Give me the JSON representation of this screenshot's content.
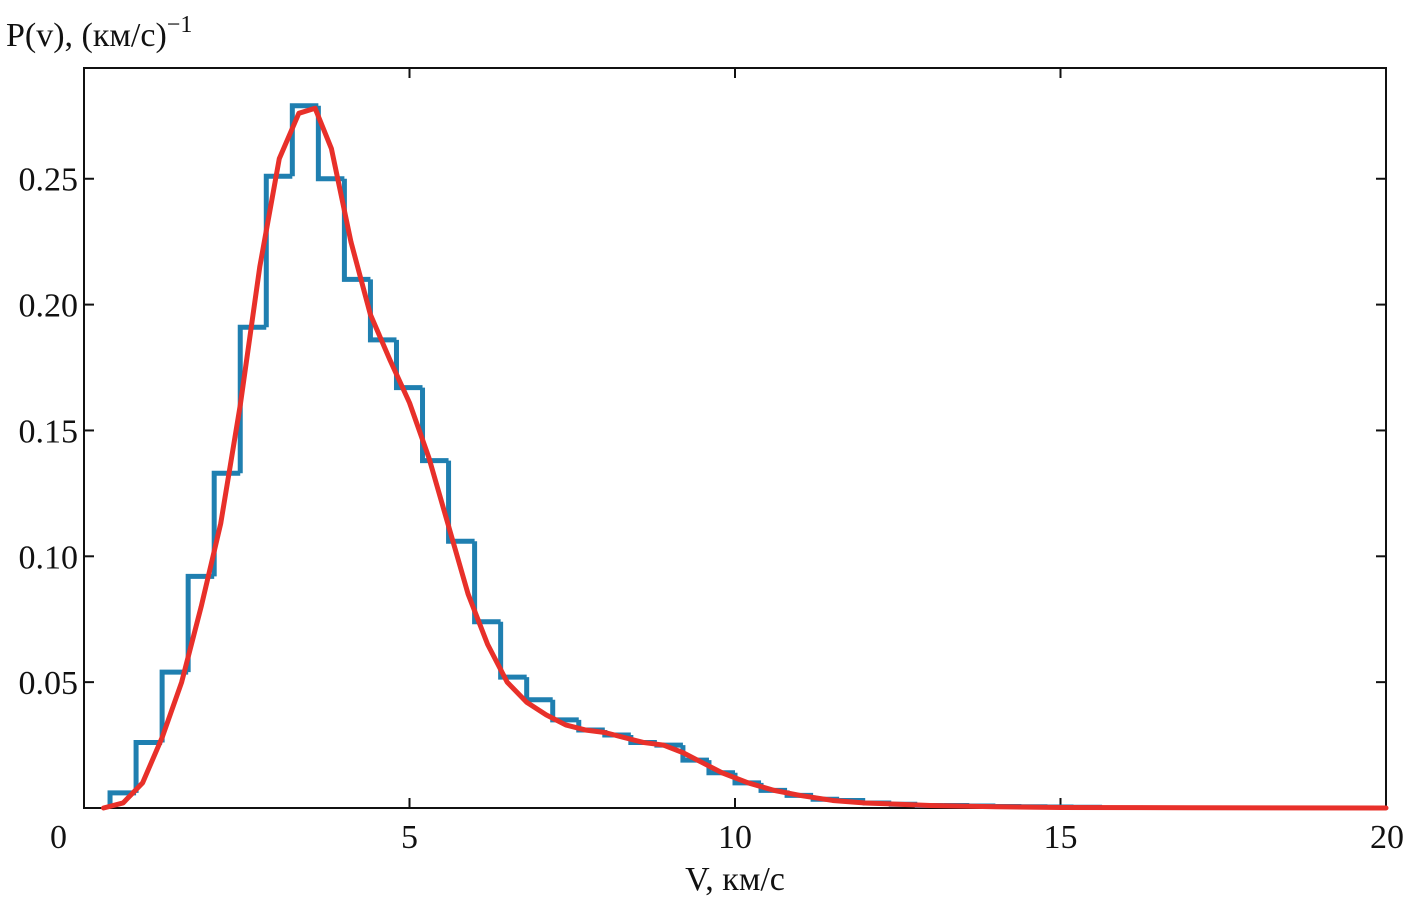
{
  "chart_data": {
    "type": "histogram",
    "ylabel": "P(v), (км/с)",
    "ylabel_superscript": "−1",
    "xlabel": "V, км/с",
    "xlim": [
      0,
      20
    ],
    "ylim": [
      0,
      0.294
    ],
    "xticks": [
      0,
      5,
      10,
      15,
      20
    ],
    "yticks": [
      0.05,
      {
        "value": 0.1,
        "label": "0.10"
      },
      0.15,
      {
        "value": 0.2,
        "label": "0.20"
      },
      0.25
    ],
    "bins": [
      0.4,
      0.8,
      1.2,
      1.6,
      2.0,
      2.4,
      2.8,
      3.2,
      3.6,
      4.0,
      4.4,
      4.8,
      5.2,
      5.6,
      6.0,
      6.4,
      6.8,
      7.2,
      7.6,
      8.0,
      8.4,
      8.8,
      9.2,
      9.6,
      10.0,
      10.4,
      10.8,
      11.2,
      11.6,
      12.0,
      12.4,
      12.8,
      13.2,
      13.6,
      14.0,
      14.4,
      14.8,
      15.2,
      15.6
    ],
    "counts": [
      0.006,
      0.026,
      0.054,
      0.092,
      0.133,
      0.191,
      0.251,
      0.279,
      0.25,
      0.21,
      0.186,
      0.167,
      0.138,
      0.106,
      0.074,
      0.052,
      0.043,
      0.035,
      0.031,
      0.029,
      0.026,
      0.025,
      0.019,
      0.014,
      0.01,
      0.007,
      0.005,
      0.0035,
      0.003,
      0.002,
      0.0015,
      0.001,
      0.001,
      0.0008,
      0.0006,
      0.0005,
      0.0004,
      0.0003
    ],
    "color": "#1f7fb0",
    "curve": {
      "color": "#e8302a",
      "x": [
        0.3,
        0.6,
        0.9,
        1.2,
        1.5,
        1.8,
        2.1,
        2.4,
        2.7,
        3.0,
        3.3,
        3.55,
        3.8,
        4.1,
        4.4,
        4.7,
        5.0,
        5.3,
        5.6,
        5.9,
        6.2,
        6.5,
        6.8,
        7.1,
        7.4,
        7.7,
        8.0,
        8.3,
        8.6,
        8.9,
        9.2,
        9.5,
        9.8,
        10.2,
        10.6,
        11.0,
        11.5,
        12.0,
        13,
        14,
        15,
        17,
        20
      ],
      "y": [
        0,
        0.002,
        0.01,
        0.028,
        0.05,
        0.08,
        0.113,
        0.16,
        0.215,
        0.258,
        0.276,
        0.278,
        0.262,
        0.225,
        0.196,
        0.178,
        0.161,
        0.139,
        0.112,
        0.085,
        0.065,
        0.05,
        0.042,
        0.037,
        0.033,
        0.031,
        0.03,
        0.028,
        0.026,
        0.025,
        0.022,
        0.018,
        0.014,
        0.01,
        0.007,
        0.005,
        0.003,
        0.002,
        0.001,
        0.0005,
        0.0002,
        0.0001,
        0
      ]
    }
  }
}
